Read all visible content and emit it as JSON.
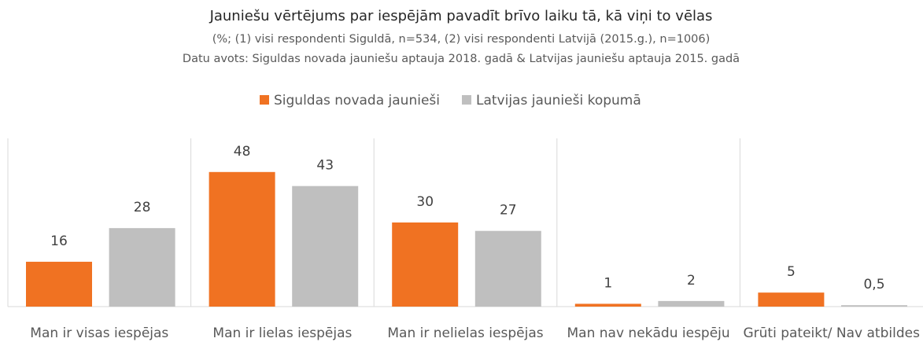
{
  "chart_data": {
    "type": "bar",
    "title": "Jauniešu vērtējums par iespējām pavadīt brīvo laiku tā, kā viņi to vēlas",
    "subtitle": "(%; (1) visi respondenti Siguldā, n=534, (2) visi respondenti Latvijā (2015.g.), n=1006)",
    "source": "Datu avots: Siguldas novada jauniešu aptauja 2018. gadā & Latvijas jauniešu aptauja 2015. gadā",
    "categories": [
      "Man ir visas iespējas",
      "Man ir lielas iespējas",
      "Man ir nelielas iespējas",
      "Man nav nekādu iespēju",
      "Grūti pateikt/ Nav atbildes"
    ],
    "series": [
      {
        "name": "Siguldas novada jaunieši",
        "color": "#f07222",
        "values": [
          16,
          48,
          30,
          1,
          5
        ]
      },
      {
        "name": "Latvijas jaunieši kopumā",
        "color": "#bfbfbf",
        "values": [
          28,
          43,
          27,
          2,
          0.5
        ],
        "value_labels": [
          "28",
          "43",
          "27",
          "2",
          "0,5"
        ]
      }
    ],
    "ylim": [
      0,
      60
    ],
    "legend": "top"
  }
}
